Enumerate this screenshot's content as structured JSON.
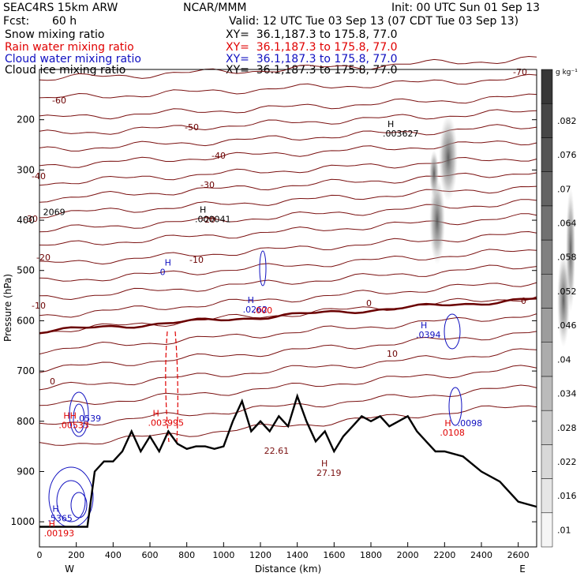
{
  "header": {
    "model": "SEAC4RS 15km ARW",
    "org": "NCAR/MMM",
    "init": "Init: 00 UTC Sun 01 Sep 13",
    "fcst_label": "Fcst:",
    "fcst_value": "60 h",
    "valid": "Valid: 12 UTC Tue 03 Sep 13 (07 CDT Tue 03 Sep 13)"
  },
  "fields": [
    {
      "name": "Snow mixing ratio",
      "xy": "XY=  36.1,187.3 to 175.8, 77.0",
      "color": "#000000"
    },
    {
      "name": "Rain water mixing ratio",
      "xy": "XY=  36.1,187.3 to 175.8, 77.0",
      "color": "#e00000"
    },
    {
      "name": "Cloud water mixing ratio",
      "xy": "XY=  36.1,187.3 to 175.8, 77.0",
      "color": "#1010c0"
    },
    {
      "name": "Cloud ice mixing ratio",
      "xy": "XY=  36.1,187.3 to 175.8, 77.0",
      "color": "#000000"
    }
  ],
  "colorbar": {
    "unit": "g kg⁻¹",
    "ticks": [
      ".01",
      ".016",
      ".022",
      ".028",
      ".034",
      ".04",
      ".046",
      ".052",
      ".058",
      ".064",
      ".07",
      ".076",
      ".082"
    ]
  },
  "chart_data": {
    "type": "cross-section",
    "xlabel": "Distance (km)",
    "ylabel": "Pressure (hPa)",
    "xlim": [
      0,
      2700
    ],
    "ylim": [
      1050,
      100
    ],
    "xticks": [
      0,
      200,
      400,
      600,
      800,
      1000,
      1200,
      1400,
      1600,
      1800,
      2000,
      2200,
      2400,
      2600
    ],
    "yticks": [
      1000,
      900,
      800,
      700,
      600,
      500,
      400,
      300,
      200
    ],
    "end_labels": {
      "left": "W",
      "right": "E"
    },
    "temperature_labels_C": [
      "-70",
      "-60",
      "-50",
      "-40",
      "-30",
      "-20",
      "-10",
      "0",
      "10",
      "20"
    ],
    "terrain_km_hpa": [
      [
        0,
        1010
      ],
      [
        200,
        1010
      ],
      [
        260,
        1010
      ],
      [
        300,
        900
      ],
      [
        350,
        880
      ],
      [
        400,
        880
      ],
      [
        450,
        860
      ],
      [
        500,
        820
      ],
      [
        550,
        860
      ],
      [
        600,
        830
      ],
      [
        650,
        860
      ],
      [
        700,
        820
      ],
      [
        750,
        845
      ],
      [
        800,
        855
      ],
      [
        850,
        850
      ],
      [
        900,
        850
      ],
      [
        950,
        855
      ],
      [
        1000,
        850
      ],
      [
        1050,
        800
      ],
      [
        1100,
        760
      ],
      [
        1150,
        820
      ],
      [
        1200,
        800
      ],
      [
        1250,
        820
      ],
      [
        1300,
        790
      ],
      [
        1350,
        810
      ],
      [
        1400,
        750
      ],
      [
        1450,
        800
      ],
      [
        1500,
        840
      ],
      [
        1550,
        820
      ],
      [
        1600,
        860
      ],
      [
        1650,
        830
      ],
      [
        1700,
        810
      ],
      [
        1750,
        790
      ],
      [
        1800,
        800
      ],
      [
        1850,
        790
      ],
      [
        1900,
        810
      ],
      [
        1950,
        800
      ],
      [
        2000,
        790
      ],
      [
        2050,
        820
      ],
      [
        2100,
        840
      ],
      [
        2150,
        860
      ],
      [
        2200,
        860
      ],
      [
        2300,
        870
      ],
      [
        2400,
        900
      ],
      [
        2500,
        920
      ],
      [
        2600,
        960
      ],
      [
        2700,
        970
      ]
    ],
    "annotations": [
      {
        "text": "H",
        "sub": ".003627",
        "km": 1890,
        "hpa": 215,
        "color": "#000000"
      },
      {
        "text": "H",
        "sub": ".000041",
        "km": 870,
        "hpa": 385,
        "color": "#000000"
      },
      {
        "text": "2069",
        "km": 20,
        "hpa": 390,
        "color": "#000000"
      },
      {
        "text": "H",
        "sub": "0",
        "km": 680,
        "hpa": 490,
        "color": "#1010c0"
      },
      {
        "text": "H",
        "sub": ".0262",
        "km": 1130,
        "hpa": 565,
        "color": "#1010c0"
      },
      {
        "text": ".000",
        "km": 1160,
        "hpa": 585,
        "color": "#e00000"
      },
      {
        "text": "H",
        "sub": ".0394",
        "km": 2070,
        "hpa": 615,
        "color": "#1010c0"
      },
      {
        "text": "H",
        "sub": ".003995",
        "km": 615,
        "hpa": 790,
        "color": "#e00000"
      },
      {
        "text": "HH",
        "sub": ".00533",
        "km": 130,
        "hpa": 795,
        "color": "#e00000"
      },
      {
        "text": ".0539",
        "km": 200,
        "hpa": 800,
        "color": "#1010c0"
      },
      {
        "text": "H",
        "sub": ".0108",
        "km": 2200,
        "hpa": 810,
        "color": "#e00000"
      },
      {
        "text": ".0098",
        "km": 2270,
        "hpa": 810,
        "color": "#1010c0"
      },
      {
        "text": "22.61",
        "km": 1220,
        "hpa": 865,
        "color": "#7a1010"
      },
      {
        "text": "H",
        "sub": "27.19",
        "km": 1530,
        "hpa": 890,
        "color": "#7a1010"
      },
      {
        "text": "H",
        "sub": ".5365",
        "km": 70,
        "hpa": 980,
        "color": "#1010c0"
      },
      {
        "text": "H",
        "sub": ".00193",
        "km": 50,
        "hpa": 1010,
        "color": "#e00000"
      }
    ]
  }
}
